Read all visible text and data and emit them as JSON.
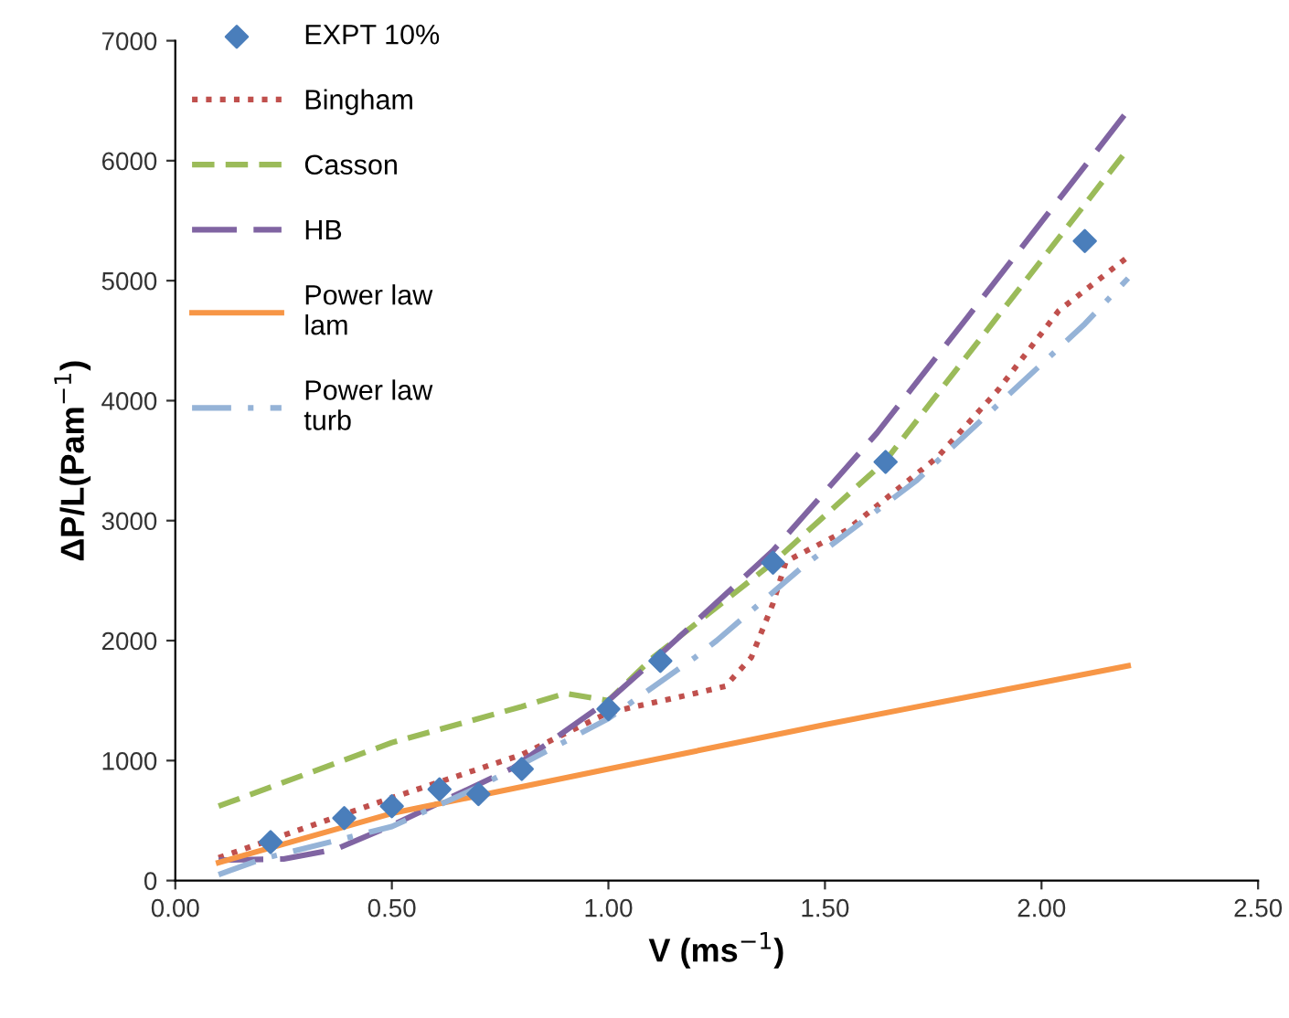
{
  "chart_data": {
    "type": "line",
    "xlabel": "V (ms$^{−1}$)",
    "ylabel": "ΔP/L(Pam$^{−1}$)",
    "xlim": [
      0,
      2.5
    ],
    "ylim": [
      0,
      7000
    ],
    "xticks": [
      {
        "value": 0,
        "label": "0.00"
      },
      {
        "value": 0.5,
        "label": "0.50"
      },
      {
        "value": 1,
        "label": "1.00"
      },
      {
        "value": 1.5,
        "label": "1.50"
      },
      {
        "value": 2,
        "label": "2.00"
      },
      {
        "value": 2.5,
        "label": "2.50"
      }
    ],
    "yticks": [
      0,
      1000,
      2000,
      3000,
      4000,
      5000,
      6000,
      7000
    ],
    "grid": false,
    "legend": "top left",
    "series": [
      {
        "name": "EXPT 10%",
        "type": "scatter",
        "marker": "diamond",
        "color": "#4a7ebb",
        "x": [
          0.22,
          0.39,
          0.5,
          0.61,
          0.7,
          0.8,
          1.0,
          1.12,
          1.38,
          1.64,
          2.1
        ],
        "values": [
          320,
          520,
          620,
          760,
          720,
          930,
          1430,
          1830,
          2650,
          3490,
          5330
        ]
      },
      {
        "name": "Bingham",
        "line_style": "dotted",
        "color": "#c0504d",
        "x": [
          0.1,
          0.5,
          0.8,
          1.0,
          1.2,
          1.27,
          1.33,
          1.38,
          1.41,
          1.55,
          1.76,
          1.9,
          2.04,
          2.2
        ],
        "values": [
          190,
          690,
          1050,
          1400,
          1560,
          1620,
          1860,
          2310,
          2660,
          2920,
          3530,
          4090,
          4750,
          5200
        ]
      },
      {
        "name": "Casson",
        "line_style": "dashed",
        "color": "#9bbb59",
        "x": [
          0.1,
          0.5,
          0.8,
          0.9,
          1.0,
          1.1,
          1.38,
          1.64,
          2.2
        ],
        "values": [
          620,
          1150,
          1450,
          1560,
          1500,
          1850,
          2650,
          3500,
          6100
        ]
      },
      {
        "name": "HB",
        "line_style": "longdash",
        "color": "#8064a2",
        "x": [
          0.1,
          0.25,
          0.37,
          0.5,
          0.78,
          1.0,
          1.1,
          1.38,
          1.62,
          1.83,
          2.2
        ],
        "values": [
          170,
          180,
          260,
          460,
          940,
          1500,
          1820,
          2750,
          3730,
          4700,
          6420
        ]
      },
      {
        "name": "Power law\nlam",
        "line_style": "solid",
        "color": "#f79646",
        "x": [
          0.1,
          0.5,
          1.0,
          1.5,
          2.2
        ],
        "values": [
          150,
          560,
          930,
          1300,
          1790
        ]
      },
      {
        "name": "Power law\nturb",
        "line_style": "dashdot",
        "color": "#95b3d7",
        "x": [
          0.1,
          0.2,
          0.5,
          0.7,
          1.0,
          1.2,
          1.25,
          1.45,
          1.71,
          2.1,
          2.2
        ],
        "values": [
          50,
          180,
          450,
          780,
          1350,
          1860,
          2000,
          2620,
          3330,
          4640,
          5020
        ]
      }
    ]
  }
}
